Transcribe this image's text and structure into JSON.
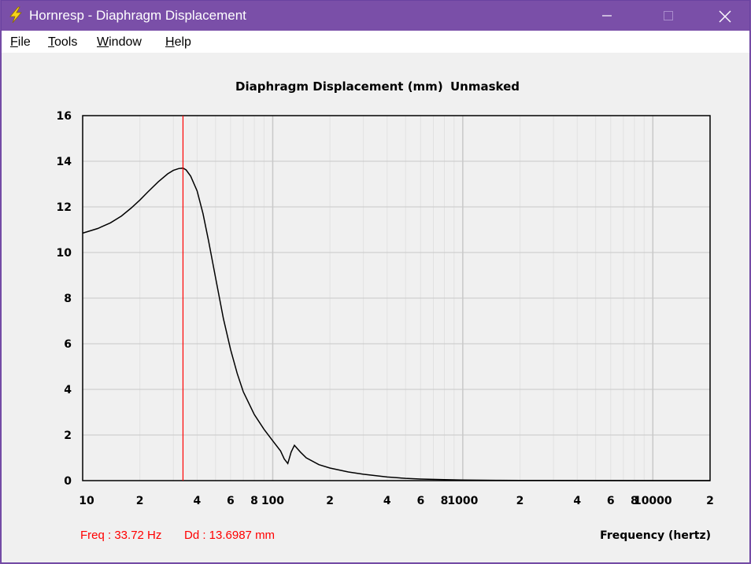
{
  "window": {
    "title": "Hornresp - Diaphragm Displacement",
    "icon": "lightning-bolt-icon",
    "controls": [
      "minimize-icon",
      "maximize-icon",
      "close-icon"
    ]
  },
  "menu": {
    "items": [
      {
        "label_rest": "ile",
        "accel": "F"
      },
      {
        "label_rest": "ools",
        "accel": "T"
      },
      {
        "label_rest": "indow",
        "accel": "W"
      },
      {
        "label_rest": "elp",
        "accel": "H"
      }
    ]
  },
  "readout": {
    "freq": "Freq : 33.72 Hz",
    "dd": "Dd : 13.6987 mm"
  },
  "colors": {
    "titlebar": "#7a4fa8",
    "curve": "#000000",
    "cursor": "#ff0000",
    "grid": "#c8c8c8",
    "grid_minor": "#e2e2e2"
  },
  "chart_data": {
    "type": "line",
    "title": "Diaphragm Displacement (mm)",
    "subtitle": "Unmasked",
    "xlabel": "Frequency (hertz)",
    "ylabel": "",
    "xscale": "log",
    "xlim": [
      10,
      20000
    ],
    "ylim": [
      0,
      16
    ],
    "y_ticks": [
      0,
      2,
      4,
      6,
      8,
      10,
      12,
      14,
      16
    ],
    "x_tick_labels": [
      {
        "value": 10,
        "label": "10"
      },
      {
        "value": 20,
        "label": "2"
      },
      {
        "value": 40,
        "label": "4"
      },
      {
        "value": 60,
        "label": "6"
      },
      {
        "value": 80,
        "label": "8"
      },
      {
        "value": 100,
        "label": "100"
      },
      {
        "value": 200,
        "label": "2"
      },
      {
        "value": 400,
        "label": "4"
      },
      {
        "value": 600,
        "label": "6"
      },
      {
        "value": 800,
        "label": "8"
      },
      {
        "value": 1000,
        "label": "1000"
      },
      {
        "value": 2000,
        "label": "2"
      },
      {
        "value": 4000,
        "label": "4"
      },
      {
        "value": 6000,
        "label": "6"
      },
      {
        "value": 8000,
        "label": "8"
      },
      {
        "value": 10000,
        "label": "10000"
      },
      {
        "value": 20000,
        "label": "2"
      }
    ],
    "grid": true,
    "cursor_x": 33.72,
    "series": [
      {
        "x": [
          10,
          12,
          14,
          16,
          18,
          20,
          22,
          25,
          28,
          30,
          32,
          33.72,
          35,
          37,
          40,
          43,
          46,
          50,
          55,
          60,
          65,
          70,
          80,
          90,
          100,
          110,
          115,
          120,
          125,
          130,
          140,
          150,
          175,
          200,
          250,
          300,
          400,
          500,
          600,
          800,
          1000,
          1500,
          2000,
          3000,
          5000,
          10000,
          20000
        ],
        "y": [
          10.85,
          11.05,
          11.3,
          11.6,
          11.95,
          12.3,
          12.65,
          13.1,
          13.45,
          13.6,
          13.68,
          13.7,
          13.62,
          13.35,
          12.7,
          11.7,
          10.5,
          8.9,
          7.1,
          5.75,
          4.7,
          3.9,
          2.9,
          2.25,
          1.75,
          1.3,
          0.95,
          0.75,
          1.25,
          1.55,
          1.25,
          1.0,
          0.7,
          0.55,
          0.38,
          0.28,
          0.16,
          0.1,
          0.07,
          0.04,
          0.025,
          0.015,
          0.01,
          0.006,
          0.003,
          0.001,
          0.0005
        ]
      }
    ]
  }
}
